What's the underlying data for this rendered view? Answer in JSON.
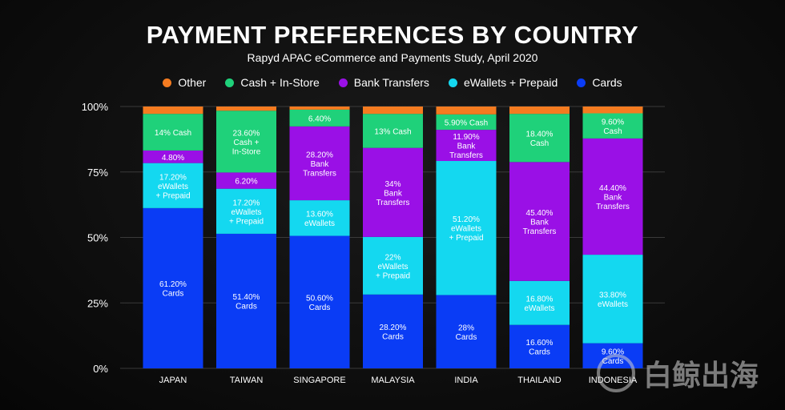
{
  "chart_data": {
    "type": "bar",
    "stacked": true,
    "title": "PAYMENT PREFERENCES BY COUNTRY",
    "subtitle": "Rapyd APAC eCommerce and Payments Study, April 2020",
    "categories": [
      "JAPAN",
      "TAIWAN",
      "SINGAPORE",
      "MALAYSIA",
      "INDIA",
      "THAILAND",
      "INDONESIA"
    ],
    "ylim": [
      0,
      100
    ],
    "yticks": [
      "0%",
      "25%",
      "50%",
      "75%",
      "100%"
    ],
    "grid": true,
    "legend_position": "top",
    "legend": [
      {
        "name": "Other",
        "color": "#f47b20"
      },
      {
        "name": "Cash + In-Store",
        "color": "#1fd17a"
      },
      {
        "name": "Bank Transfers",
        "color": "#9a10e6"
      },
      {
        "name": "eWallets + Prepaid",
        "color": "#14d8f0"
      },
      {
        "name": "Cards",
        "color": "#0a3cf5"
      }
    ],
    "series": [
      {
        "name": "Cards",
        "color": "#0a3cf5",
        "values": [
          61.2,
          51.4,
          50.6,
          28.2,
          28,
          16.6,
          9.6
        ],
        "labels": [
          [
            "61.20%",
            "Cards"
          ],
          [
            "51.40%",
            "Cards"
          ],
          [
            "50.60%",
            "Cards"
          ],
          [
            "28.20%",
            "Cards"
          ],
          [
            "28%",
            "Cards"
          ],
          [
            "16.60%",
            "Cards"
          ],
          [
            "9.60%",
            "Cards"
          ]
        ]
      },
      {
        "name": "eWallets + Prepaid",
        "color": "#14d8f0",
        "values": [
          17.2,
          17.2,
          13.6,
          22,
          51.2,
          16.8,
          33.8
        ],
        "labels": [
          [
            "17.20%",
            "eWallets",
            "+ Prepaid"
          ],
          [
            "17.20%",
            "eWallets",
            "+ Prepaid"
          ],
          [
            "13.60%",
            "eWallets"
          ],
          [
            "22%",
            "eWallets",
            "+ Prepaid"
          ],
          [
            "51.20%",
            "eWallets",
            "+ Prepaid"
          ],
          [
            "16.80%",
            "eWallets"
          ],
          [
            "33.80%",
            "eWallets"
          ]
        ]
      },
      {
        "name": "Bank Transfers",
        "color": "#9a10e6",
        "values": [
          4.8,
          6.2,
          28.2,
          34,
          11.9,
          45.4,
          44.4
        ],
        "labels": [
          [
            "4.80%"
          ],
          [
            "6.20%"
          ],
          [
            "28.20%",
            "Bank",
            "Transfers"
          ],
          [
            "34%",
            "Bank",
            "Transfers"
          ],
          [
            "11.90%",
            "Bank",
            "Transfers"
          ],
          [
            "45.40%",
            "Bank",
            "Transfers"
          ],
          [
            "44.40%",
            "Bank",
            "Transfers"
          ]
        ]
      },
      {
        "name": "Cash + In-Store",
        "color": "#1fd17a",
        "values": [
          14,
          23.6,
          6.4,
          13,
          5.9,
          18.4,
          9.6
        ],
        "labels": [
          [
            "14% Cash"
          ],
          [
            "23.60%",
            "Cash +",
            "In-Store"
          ],
          [
            "6.40%"
          ],
          [
            "13% Cash"
          ],
          [
            "5.90% Cash"
          ],
          [
            "18.40%",
            "Cash"
          ],
          [
            "9.60%",
            "Cash"
          ]
        ]
      },
      {
        "name": "Other",
        "color": "#f47b20",
        "values": [
          2.8,
          1.6,
          1.2,
          2.8,
          3.0,
          2.8,
          2.6
        ],
        "labels": [
          [],
          [],
          [],
          [],
          [],
          [],
          []
        ]
      }
    ]
  },
  "watermark": {
    "text": "白鲸出海"
  }
}
